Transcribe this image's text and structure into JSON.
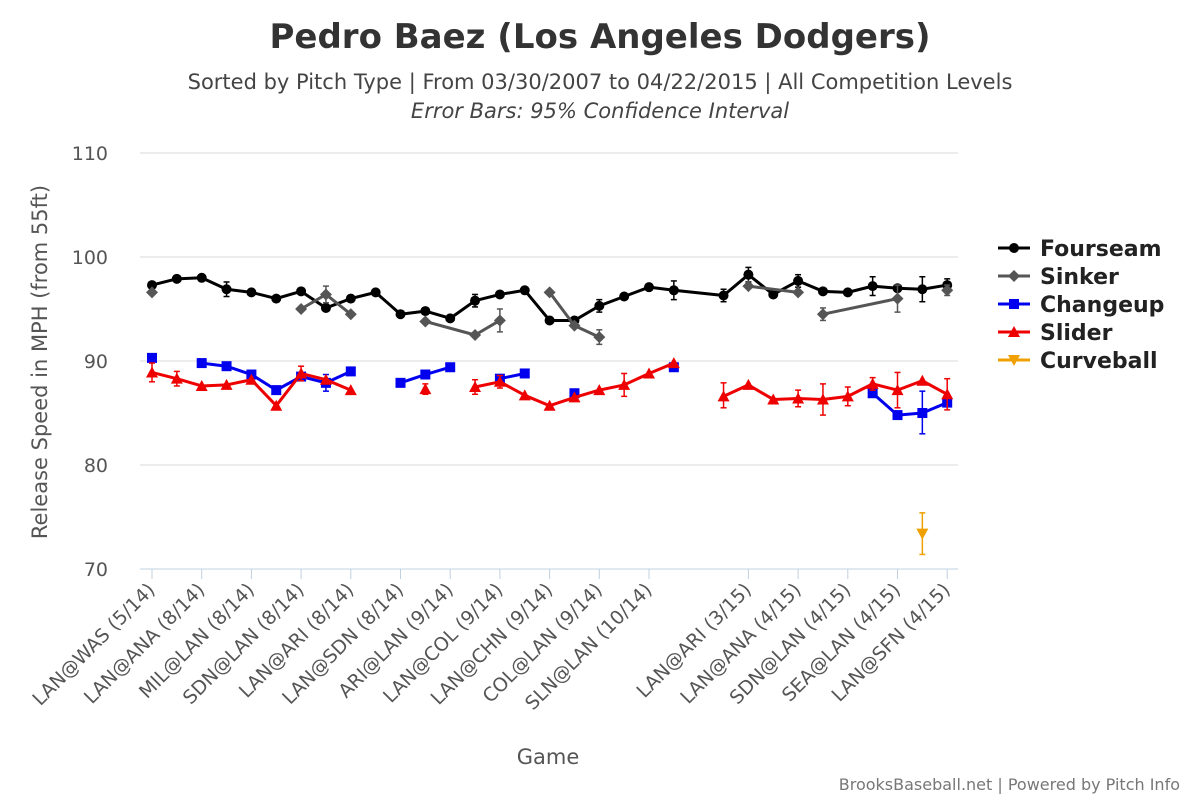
{
  "chart_data": {
    "type": "line",
    "title": "Pedro Baez (Los Angeles Dodgers)",
    "subtitle": "Sorted by Pitch Type | From 03/30/2007 to 04/22/2015 | All Competition Levels",
    "subtitle2": "Error Bars: 95% Confidence Interval",
    "xlabel": "Game",
    "ylabel": "Release Speed in MPH (from 55ft)",
    "ylim": [
      70,
      110
    ],
    "yticks": [
      "70",
      "80",
      "90",
      "100",
      "110"
    ],
    "x_tick_labels": [
      {
        "i": 0,
        "label": "LAN@WAS (5/14)"
      },
      {
        "i": 2,
        "label": "LAN@ANA (8/14)"
      },
      {
        "i": 4,
        "label": "MIL@LAN (8/14)"
      },
      {
        "i": 6,
        "label": "SDN@LAN (8/14)"
      },
      {
        "i": 8,
        "label": "LAN@ARI (8/14)"
      },
      {
        "i": 10,
        "label": "LAN@SDN (8/14)"
      },
      {
        "i": 12,
        "label": "ARI@LAN (9/14)"
      },
      {
        "i": 14,
        "label": "LAN@COL (9/14)"
      },
      {
        "i": 16,
        "label": "LAN@CHN (9/14)"
      },
      {
        "i": 18,
        "label": "COL@LAN (9/14)"
      },
      {
        "i": 20,
        "label": "SLN@LAN (10/14)"
      },
      {
        "i": 24,
        "label": "LAN@ARI (3/15)"
      },
      {
        "i": 26,
        "label": "LAN@ANA (4/15)"
      },
      {
        "i": 28,
        "label": "SDN@LAN (4/15)"
      },
      {
        "i": 30,
        "label": "SEA@LAN (4/15)"
      },
      {
        "i": 32,
        "label": "LAN@SFN (4/15)"
      }
    ],
    "grid": true,
    "legend_position": "right",
    "series": [
      {
        "name": "Fourseam",
        "color": "#000000",
        "marker": "circle",
        "points": [
          [
            0,
            97.3
          ],
          [
            1,
            97.9
          ],
          [
            2,
            98.0
          ],
          [
            3,
            96.9
          ],
          [
            4,
            96.6
          ],
          [
            5,
            96.0
          ],
          [
            6,
            96.7
          ],
          [
            7,
            95.1
          ],
          [
            8,
            96.0
          ],
          [
            9,
            96.6
          ],
          [
            10,
            94.5
          ],
          [
            11,
            94.8
          ],
          [
            12,
            94.1
          ],
          [
            13,
            95.8
          ],
          [
            14,
            96.4
          ],
          [
            15,
            96.8
          ],
          [
            16,
            93.9
          ],
          [
            17,
            93.9
          ],
          [
            18,
            95.3
          ],
          [
            19,
            96.2
          ],
          [
            20,
            97.1
          ],
          [
            21,
            96.8
          ],
          [
            23,
            96.3
          ],
          [
            24,
            98.3
          ],
          [
            25,
            96.4
          ],
          [
            26,
            97.7
          ],
          [
            27,
            96.7
          ],
          [
            28,
            96.6
          ],
          [
            29,
            97.2
          ],
          [
            30,
            97.0
          ],
          [
            31,
            96.9
          ],
          [
            32,
            97.3
          ]
        ],
        "error_bars": [
          [
            3,
            96.2,
            97.6
          ],
          [
            13,
            95.2,
            96.4
          ],
          [
            18,
            94.7,
            95.9
          ],
          [
            21,
            95.9,
            97.7
          ],
          [
            23,
            95.7,
            96.9
          ],
          [
            24,
            97.6,
            99.0
          ],
          [
            26,
            97.1,
            98.3
          ],
          [
            29,
            96.3,
            98.1
          ],
          [
            31,
            95.7,
            98.1
          ],
          [
            32,
            96.7,
            97.9
          ]
        ]
      },
      {
        "name": "Sinker",
        "color": "#555555",
        "marker": "diamond",
        "points": [
          [
            0,
            96.6
          ],
          [
            6,
            95.0
          ],
          [
            7,
            96.4
          ],
          [
            8,
            94.5
          ],
          [
            11,
            93.8
          ],
          [
            13,
            92.5
          ],
          [
            14,
            93.9
          ],
          [
            16,
            96.6
          ],
          [
            17,
            93.4
          ],
          [
            18,
            92.3
          ],
          [
            24,
            97.2
          ],
          [
            26,
            96.6
          ],
          [
            27,
            94.5
          ],
          [
            30,
            96.0
          ],
          [
            32,
            96.8
          ]
        ],
        "segment_breaks": [
          1,
          4,
          7,
          10,
          12,
          14
        ],
        "error_bars": [
          [
            7,
            95.6,
            97.2
          ],
          [
            14,
            92.8,
            95.0
          ],
          [
            18,
            91.6,
            93.0
          ],
          [
            27,
            93.9,
            95.1
          ],
          [
            30,
            94.7,
            97.3
          ],
          [
            32,
            96.3,
            97.3
          ]
        ]
      },
      {
        "name": "Changeup",
        "color": "#0000ee",
        "marker": "square",
        "points": [
          [
            0,
            90.3
          ],
          [
            2,
            89.8
          ],
          [
            3,
            89.5
          ],
          [
            4,
            88.7
          ],
          [
            5,
            87.2
          ],
          [
            6,
            88.5
          ],
          [
            7,
            87.9
          ],
          [
            8,
            89.0
          ],
          [
            10,
            87.9
          ],
          [
            11,
            88.7
          ],
          [
            12,
            89.4
          ],
          [
            14,
            88.3
          ],
          [
            15,
            88.8
          ],
          [
            17,
            86.9
          ],
          [
            21,
            89.4
          ],
          [
            29,
            86.9
          ],
          [
            30,
            84.8
          ],
          [
            31,
            85.0
          ],
          [
            32,
            86.0
          ]
        ],
        "segment_breaks": [
          1,
          8,
          11,
          13,
          14,
          15
        ],
        "error_bars": [
          [
            7,
            87.1,
            88.7
          ],
          [
            31,
            83.0,
            87.1
          ]
        ]
      },
      {
        "name": "Slider",
        "color": "#ee0000",
        "marker": "triangle-up",
        "points": [
          [
            0,
            88.9
          ],
          [
            1,
            88.3
          ],
          [
            2,
            87.6
          ],
          [
            3,
            87.7
          ],
          [
            4,
            88.2
          ],
          [
            5,
            85.7
          ],
          [
            6,
            88.8
          ],
          [
            7,
            88.2
          ],
          [
            8,
            87.2
          ],
          [
            11,
            87.3
          ],
          [
            13,
            87.5
          ],
          [
            14,
            88.0
          ],
          [
            15,
            86.7
          ],
          [
            16,
            85.7
          ],
          [
            17,
            86.5
          ],
          [
            18,
            87.2
          ],
          [
            19,
            87.7
          ],
          [
            20,
            88.8
          ],
          [
            21,
            89.8
          ],
          [
            23,
            86.6
          ],
          [
            24,
            87.7
          ],
          [
            25,
            86.3
          ],
          [
            26,
            86.4
          ],
          [
            27,
            86.3
          ],
          [
            28,
            86.6
          ],
          [
            29,
            87.8
          ],
          [
            30,
            87.2
          ],
          [
            31,
            88.1
          ],
          [
            32,
            86.8
          ]
        ],
        "segment_breaks": [
          9,
          10,
          19
        ],
        "error_bars": [
          [
            0,
            88.0,
            89.8
          ],
          [
            1,
            87.6,
            89.0
          ],
          [
            6,
            88.1,
            89.5
          ],
          [
            11,
            86.8,
            87.8
          ],
          [
            13,
            86.8,
            88.2
          ],
          [
            14,
            87.4,
            88.6
          ],
          [
            19,
            86.6,
            88.8
          ],
          [
            23,
            85.5,
            87.9
          ],
          [
            26,
            85.6,
            87.2
          ],
          [
            27,
            84.8,
            87.8
          ],
          [
            28,
            85.7,
            87.5
          ],
          [
            29,
            87.2,
            88.4
          ],
          [
            30,
            85.5,
            88.9
          ],
          [
            32,
            85.3,
            88.3
          ]
        ]
      },
      {
        "name": "Curveball",
        "color": "#f0a000",
        "marker": "triangle-down",
        "points": [
          [
            31,
            73.4
          ]
        ],
        "error_bars": [
          [
            31,
            71.4,
            75.4
          ]
        ]
      }
    ]
  },
  "credit": "BrooksBaseball.net | Powered by Pitch Info"
}
